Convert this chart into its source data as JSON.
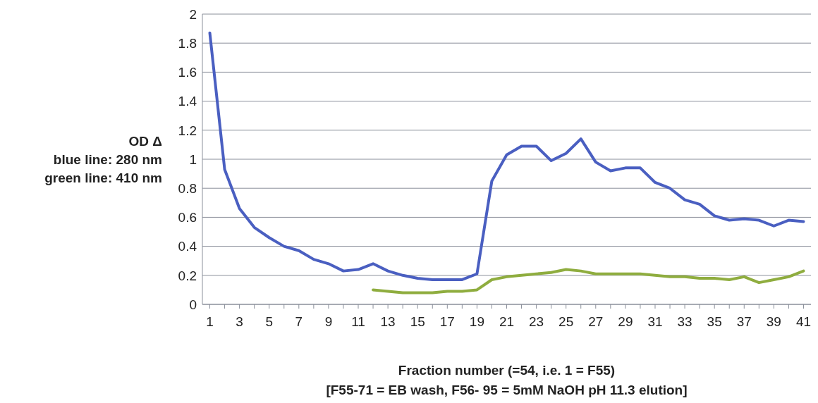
{
  "chart_data": {
    "type": "line",
    "xlabel": "Fraction number (=54, i.e. 1 = F55)\n[F55-71 = EB wash, F56- 95 = 5mM NaOH pH 11.3 elution]",
    "ylabel": "OD Δ\nblue line: 280 nm\ngreen line: 410 nm",
    "x": [
      1,
      2,
      3,
      4,
      5,
      6,
      7,
      8,
      9,
      10,
      11,
      12,
      13,
      14,
      15,
      16,
      17,
      18,
      19,
      20,
      21,
      22,
      23,
      24,
      25,
      26,
      27,
      28,
      29,
      30,
      31,
      32,
      33,
      34,
      35,
      36,
      37,
      38,
      39,
      40,
      41
    ],
    "xlim": [
      0.5,
      41.5
    ],
    "xticks": [
      1,
      {
        "value": 2,
        "label": null
      },
      3,
      {
        "value": 4,
        "label": null
      },
      5,
      {
        "value": 6,
        "label": null
      },
      7,
      {
        "value": 8,
        "label": null
      },
      9,
      {
        "value": 10,
        "label": null
      },
      11,
      {
        "value": 12,
        "label": null
      },
      13,
      {
        "value": 14,
        "label": null
      },
      15,
      {
        "value": 16,
        "label": null
      },
      17,
      {
        "value": 18,
        "label": null
      },
      19,
      {
        "value": 20,
        "label": null
      },
      21,
      {
        "value": 22,
        "label": null
      },
      23,
      {
        "value": 24,
        "label": null
      },
      25,
      {
        "value": 26,
        "label": null
      },
      27,
      {
        "value": 28,
        "label": null
      },
      29,
      {
        "value": 30,
        "label": null
      },
      31,
      {
        "value": 32,
        "label": null
      },
      33,
      {
        "value": 34,
        "label": null
      },
      35,
      {
        "value": 36,
        "label": null
      },
      37,
      {
        "value": 38,
        "label": null
      },
      39,
      {
        "value": 40,
        "label": null
      },
      41
    ],
    "series": [
      {
        "color": "#4a5fc1",
        "values": [
          1.87,
          0.93,
          0.66,
          0.53,
          0.46,
          0.4,
          0.37,
          0.31,
          0.28,
          0.23,
          0.24,
          0.28,
          0.23,
          0.2,
          0.18,
          0.17,
          0.17,
          0.17,
          0.21,
          0.85,
          1.03,
          1.09,
          1.09,
          0.99,
          1.04,
          1.14,
          0.98,
          0.92,
          0.94,
          0.94,
          0.84,
          0.8,
          0.72,
          0.69,
          0.61,
          0.58,
          0.59,
          0.58,
          0.54,
          0.58,
          0.57
        ]
      },
      {
        "color": "#8fad3f",
        "values": [
          null,
          null,
          null,
          null,
          null,
          null,
          null,
          null,
          null,
          null,
          null,
          0.1,
          0.09,
          0.08,
          0.08,
          0.08,
          0.09,
          0.09,
          0.1,
          0.17,
          0.19,
          0.2,
          0.21,
          0.22,
          0.24,
          0.23,
          0.21,
          0.21,
          0.21,
          0.21,
          0.2,
          0.19,
          0.19,
          0.18,
          0.18,
          0.17,
          0.19,
          0.15,
          0.17,
          0.19,
          0.23
        ]
      }
    ],
    "ylim": [
      0,
      2
    ],
    "yticks": [
      0,
      0.2,
      0.4,
      0.6,
      0.8,
      1,
      1.2,
      1.4,
      1.6,
      1.8,
      2
    ],
    "grid": "y",
    "marker": "none",
    "line_style": "solid"
  }
}
